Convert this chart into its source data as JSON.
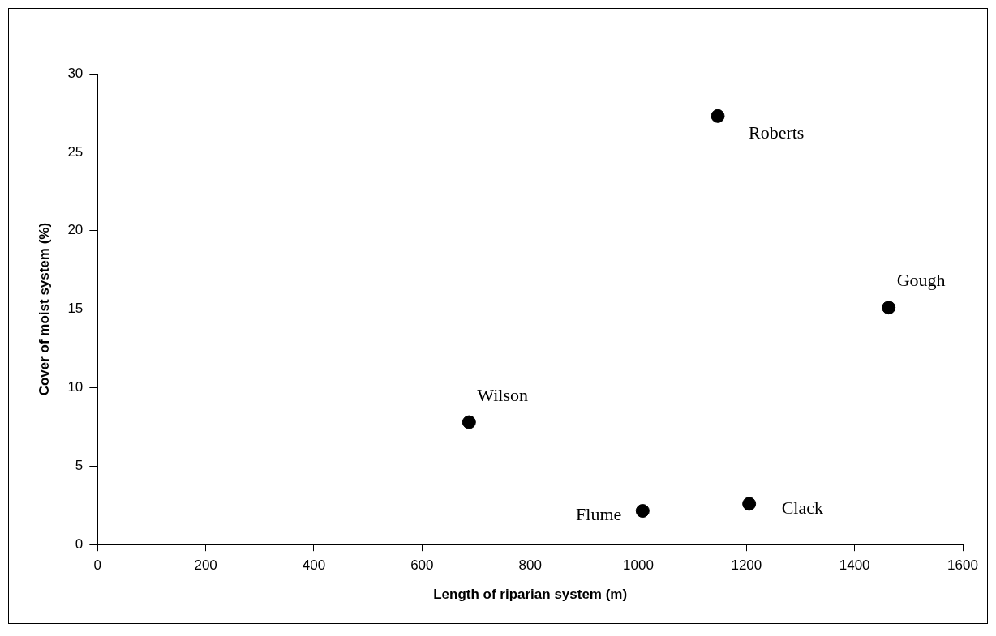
{
  "chart_data": {
    "type": "scatter",
    "xlabel": "Length of riparian system (m)",
    "ylabel": "Cover of moist system (%)",
    "x": [
      1147,
      1463,
      687,
      1008,
      1205
    ],
    "values": [
      27.3,
      15.1,
      7.8,
      2.15,
      2.6
    ],
    "color": "#000000",
    "marker": "circle",
    "grid": false,
    "legend": false,
    "xlim": [
      0,
      1600
    ],
    "xticks": [
      0,
      200,
      400,
      600,
      800,
      1000,
      1200,
      1400,
      1600
    ],
    "ylim": [
      0,
      30
    ],
    "yticks": [
      0,
      5,
      10,
      15,
      20,
      25,
      30
    ],
    "annotations": [
      {
        "text": "Roberts",
        "x": 1147,
        "y": 27.3
      },
      {
        "text": "Gough",
        "x": 1463,
        "y": 15.1
      },
      {
        "text": "Wilson",
        "x": 687,
        "y": 7.8
      },
      {
        "text": "Flume",
        "x": 1008,
        "y": 2.15
      },
      {
        "text": "Clack",
        "x": 1205,
        "y": 2.6
      }
    ]
  }
}
